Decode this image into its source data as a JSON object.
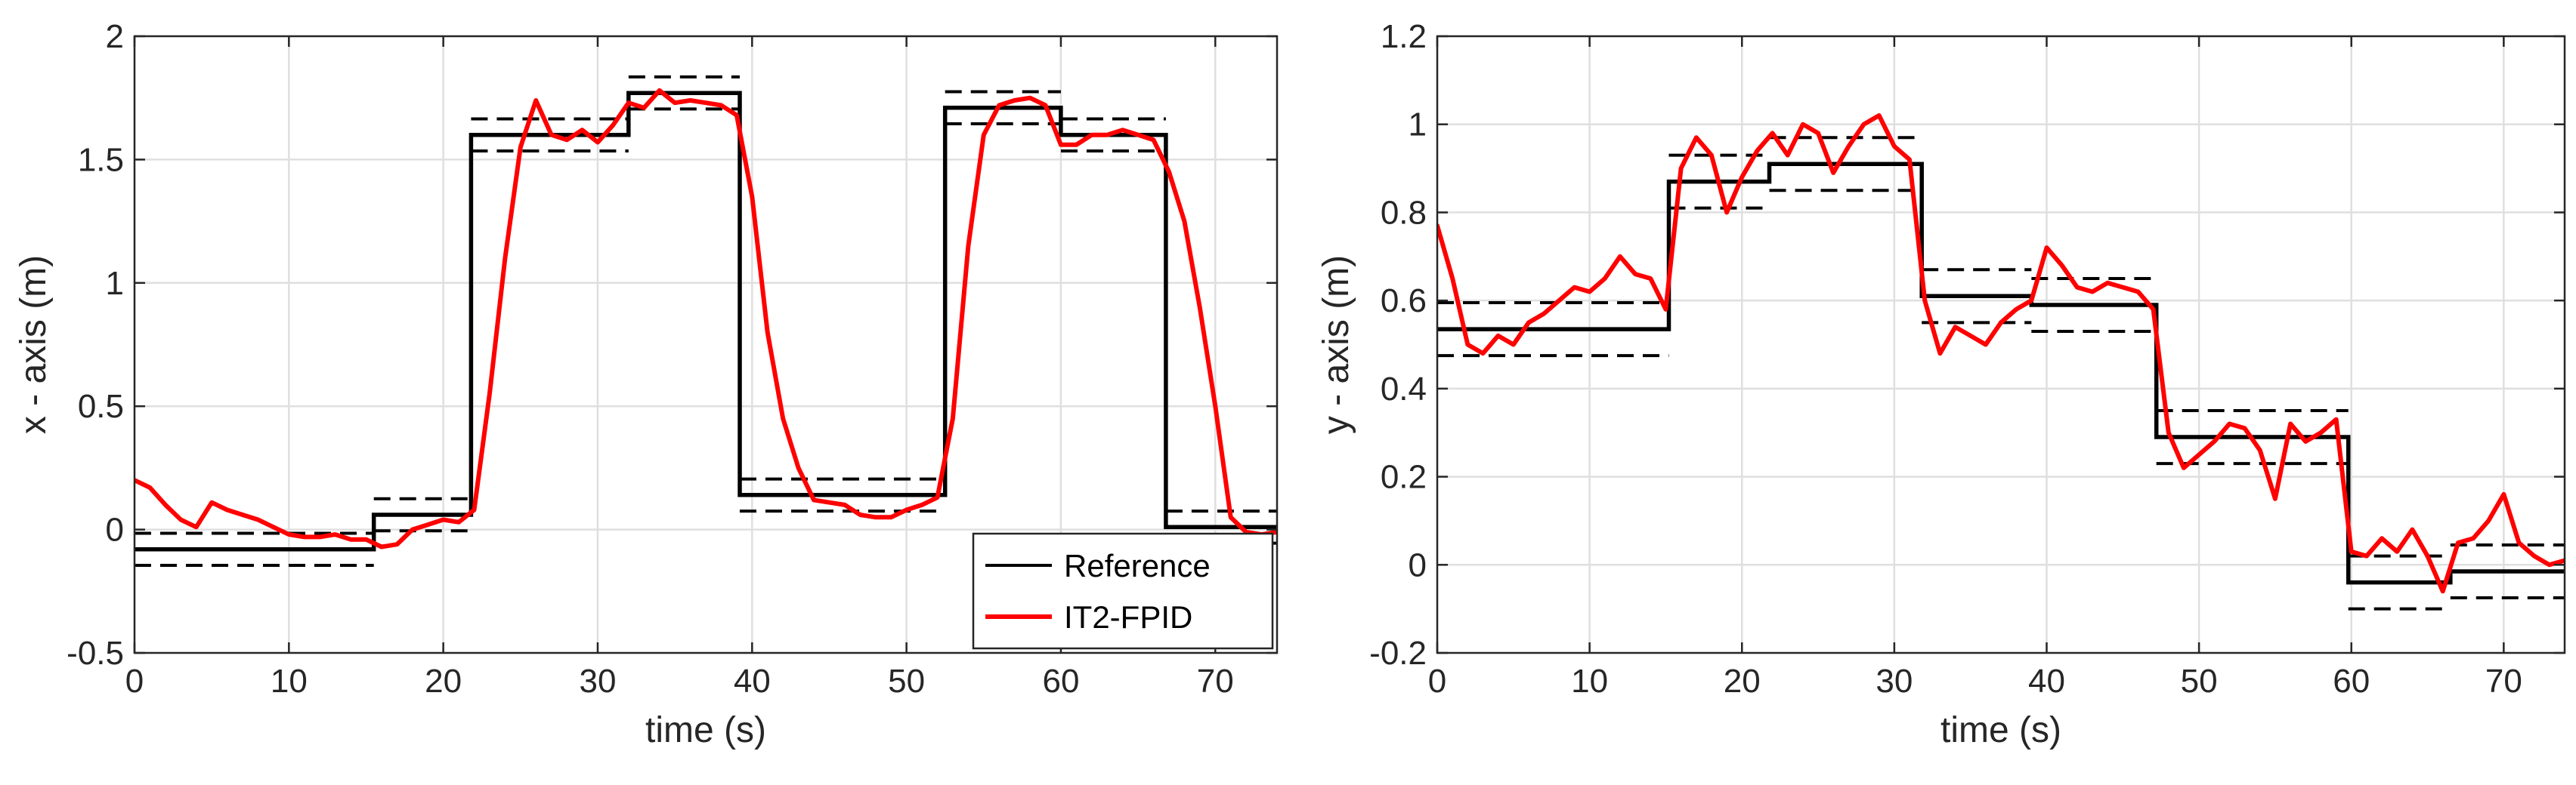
{
  "chart_data": [
    {
      "type": "line",
      "xlabel": "time (s)",
      "ylabel": "x - axis (m)",
      "xlim": [
        0,
        74
      ],
      "ylim": [
        -0.5,
        2
      ],
      "xticks": [
        0,
        10,
        20,
        30,
        40,
        50,
        60,
        70
      ],
      "yticks": [
        -0.5,
        0,
        0.5,
        1,
        1.5,
        2
      ],
      "xtick_labels": [
        "0",
        "10",
        "20",
        "30",
        "40",
        "50",
        "60",
        "70"
      ],
      "ytick_labels": [
        "-0.5",
        "0",
        "0.5",
        "1",
        "1.5",
        "2"
      ],
      "grid": true,
      "legend": {
        "position": "bottom-right",
        "entries": [
          {
            "label": "Reference",
            "color": "#000000"
          },
          {
            "label": "IT2-FPID",
            "color": "#ff0000"
          }
        ]
      },
      "reference": {
        "steps": [
          [
            0,
            -0.08
          ],
          [
            15.5,
            0.06
          ],
          [
            21.8,
            1.6
          ],
          [
            32,
            1.77
          ],
          [
            39.2,
            0.14
          ],
          [
            52.5,
            1.71
          ],
          [
            60,
            1.6
          ],
          [
            66.8,
            0.01
          ]
        ],
        "band_offset": 0.065,
        "x_end": 74
      },
      "series": [
        {
          "name": "IT2-FPID",
          "color": "#ff0000",
          "x": [
            0,
            1,
            2,
            3,
            4,
            5,
            6,
            7,
            8,
            9,
            10,
            11,
            12,
            13,
            14,
            15,
            16,
            17,
            18,
            19,
            20,
            21,
            22,
            23,
            24,
            25,
            26,
            27,
            28,
            29,
            30,
            31,
            32,
            33,
            34,
            35,
            36,
            37,
            38,
            39,
            40,
            41,
            42,
            43,
            44,
            45,
            46,
            47,
            48,
            49,
            50,
            51,
            52,
            53,
            54,
            55,
            56,
            57,
            58,
            59,
            60,
            61,
            62,
            63,
            64,
            65,
            66,
            67,
            68,
            69,
            70,
            71,
            72,
            73,
            74
          ],
          "y": [
            0.2,
            0.17,
            0.1,
            0.04,
            0.01,
            0.11,
            0.08,
            0.06,
            0.04,
            0.01,
            -0.02,
            -0.03,
            -0.03,
            -0.02,
            -0.04,
            -0.04,
            -0.07,
            -0.06,
            0.0,
            0.02,
            0.04,
            0.03,
            0.08,
            0.55,
            1.1,
            1.55,
            1.74,
            1.6,
            1.58,
            1.62,
            1.57,
            1.64,
            1.73,
            1.71,
            1.78,
            1.73,
            1.74,
            1.73,
            1.72,
            1.68,
            1.35,
            0.8,
            0.45,
            0.25,
            0.12,
            0.11,
            0.1,
            0.06,
            0.05,
            0.05,
            0.08,
            0.1,
            0.13,
            0.45,
            1.15,
            1.6,
            1.72,
            1.74,
            1.75,
            1.72,
            1.56,
            1.56,
            1.6,
            1.6,
            1.62,
            1.6,
            1.58,
            1.45,
            1.25,
            0.9,
            0.5,
            0.05,
            -0.01,
            -0.02,
            -0.01
          ]
        }
      ]
    },
    {
      "type": "line",
      "xlabel": "time (s)",
      "ylabel": "y - axis (m)",
      "xlim": [
        0,
        74
      ],
      "ylim": [
        -0.2,
        1.2
      ],
      "xticks": [
        0,
        10,
        20,
        30,
        40,
        50,
        60,
        70
      ],
      "yticks": [
        -0.2,
        0,
        0.2,
        0.4,
        0.6,
        0.8,
        1,
        1.2
      ],
      "xtick_labels": [
        "0",
        "10",
        "20",
        "30",
        "40",
        "50",
        "60",
        "70"
      ],
      "ytick_labels": [
        "-0.2",
        "0",
        "0.2",
        "0.4",
        "0.6",
        "0.8",
        "1",
        "1.2"
      ],
      "grid": true,
      "reference": {
        "steps": [
          [
            0,
            0.535
          ],
          [
            15.2,
            0.87
          ],
          [
            21.8,
            0.91
          ],
          [
            31.8,
            0.61
          ],
          [
            39,
            0.59
          ],
          [
            47.2,
            0.29
          ],
          [
            59.8,
            -0.04
          ],
          [
            66.5,
            -0.015
          ]
        ],
        "band_offset": 0.06,
        "x_end": 74
      },
      "series": [
        {
          "name": "IT2-FPID",
          "color": "#ff0000",
          "x": [
            0,
            1,
            2,
            3,
            4,
            5,
            6,
            7,
            8,
            9,
            10,
            11,
            12,
            13,
            14,
            15,
            16,
            17,
            18,
            19,
            20,
            21,
            22,
            23,
            24,
            25,
            26,
            27,
            28,
            29,
            30,
            31,
            32,
            33,
            34,
            35,
            36,
            37,
            38,
            39,
            40,
            41,
            42,
            43,
            44,
            45,
            46,
            47,
            48,
            49,
            50,
            51,
            52,
            53,
            54,
            55,
            56,
            57,
            58,
            59,
            60,
            61,
            62,
            63,
            64,
            65,
            66,
            67,
            68,
            69,
            70,
            71,
            72,
            73,
            74
          ],
          "y": [
            0.77,
            0.65,
            0.5,
            0.48,
            0.52,
            0.5,
            0.55,
            0.57,
            0.6,
            0.63,
            0.62,
            0.65,
            0.7,
            0.66,
            0.65,
            0.58,
            0.9,
            0.97,
            0.93,
            0.8,
            0.88,
            0.94,
            0.98,
            0.93,
            1.0,
            0.98,
            0.89,
            0.95,
            1.0,
            1.02,
            0.95,
            0.92,
            0.6,
            0.48,
            0.54,
            0.52,
            0.5,
            0.55,
            0.58,
            0.6,
            0.72,
            0.68,
            0.63,
            0.62,
            0.64,
            0.63,
            0.62,
            0.58,
            0.3,
            0.22,
            0.25,
            0.28,
            0.32,
            0.31,
            0.26,
            0.15,
            0.32,
            0.28,
            0.3,
            0.33,
            0.03,
            0.02,
            0.06,
            0.03,
            0.08,
            0.02,
            -0.06,
            0.05,
            0.06,
            0.1,
            0.16,
            0.05,
            0.02,
            0.0,
            0.01
          ]
        }
      ]
    }
  ]
}
